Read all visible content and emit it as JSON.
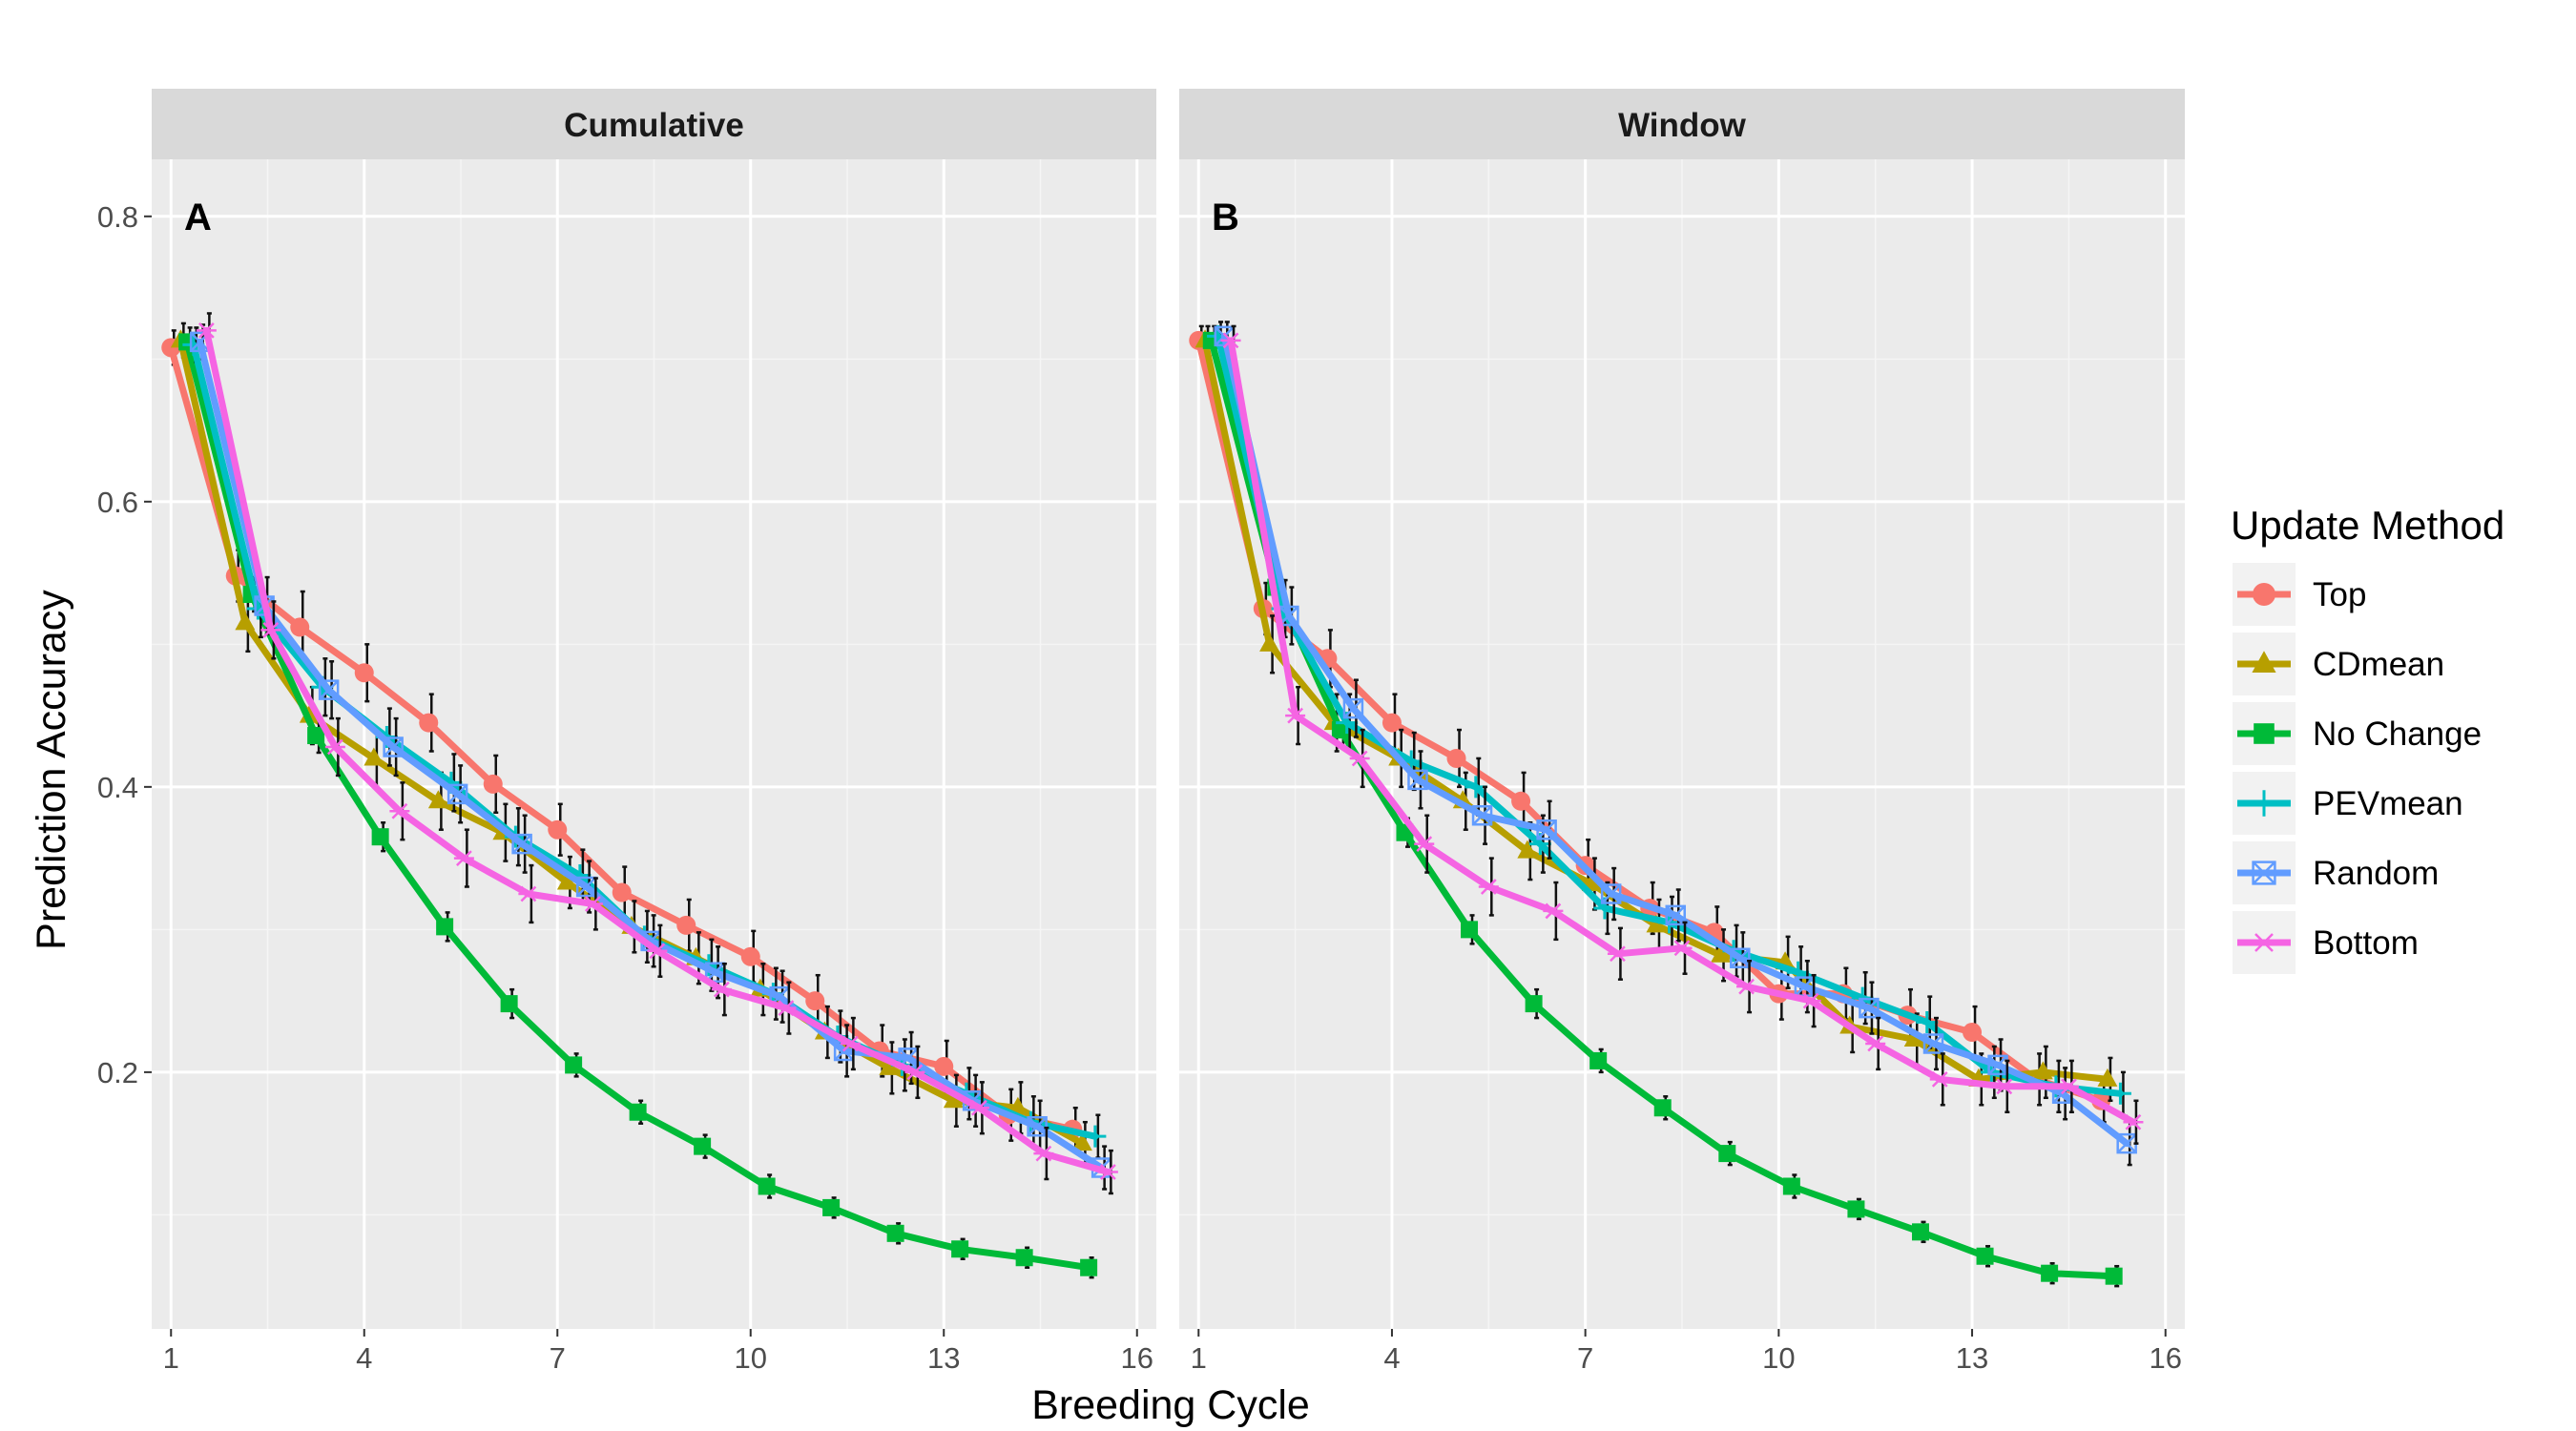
{
  "chart_data": {
    "type": "line",
    "xlabel": "Breeding Cycle",
    "ylabel": "Prediction Accuracy",
    "xlim": [
      0.7,
      16.3
    ],
    "ylim": [
      0.02,
      0.84
    ],
    "xticks": [
      1,
      4,
      7,
      10,
      13,
      16
    ],
    "yticks": [
      0.2,
      0.4,
      0.6,
      0.8
    ],
    "grid": true,
    "legend": {
      "title": "Update Method",
      "position": "right"
    },
    "series_styles": [
      {
        "name": "Top",
        "color": "#F8766D",
        "marker": "circle"
      },
      {
        "name": "CDmean",
        "color": "#B79F00",
        "marker": "triangle"
      },
      {
        "name": "No Change",
        "color": "#00BA38",
        "marker": "square"
      },
      {
        "name": "PEVmean",
        "color": "#00BFC4",
        "marker": "plus"
      },
      {
        "name": "Random",
        "color": "#619CFF",
        "marker": "square-cross"
      },
      {
        "name": "Bottom",
        "color": "#F564E3",
        "marker": "asterisk"
      }
    ],
    "panels": [
      {
        "strip": "Cumulative",
        "tag": "A",
        "series": [
          {
            "name": "Top",
            "x": [
              1,
              2,
              3,
              4,
              5,
              6,
              7,
              8,
              9,
              10,
              11,
              12,
              13,
              14,
              15
            ],
            "y": [
              0.708,
              0.548,
              0.512,
              0.48,
              0.445,
              0.402,
              0.37,
              0.326,
              0.303,
              0.281,
              0.25,
              0.215,
              0.204,
              0.17,
              0.16
            ],
            "err": [
              0.012,
              0.018,
              0.025,
              0.02,
              0.02,
              0.02,
              0.018,
              0.018,
              0.018,
              0.018,
              0.018,
              0.018,
              0.018,
              0.018,
              0.015
            ]
          },
          {
            "name": "CDmean",
            "x": [
              1.15,
              2.15,
              3.15,
              4.15,
              5.15,
              6.15,
              7.15,
              8.15,
              9.15,
              10.15,
              11.15,
              12.15,
              13.15,
              14.15,
              15.15
            ],
            "y": [
              0.713,
              0.515,
              0.45,
              0.42,
              0.39,
              0.368,
              0.333,
              0.302,
              0.28,
              0.258,
              0.228,
              0.203,
              0.18,
              0.175,
              0.15
            ],
            "err": [
              0.012,
              0.02,
              0.02,
              0.02,
              0.02,
              0.02,
              0.018,
              0.018,
              0.018,
              0.018,
              0.018,
              0.018,
              0.018,
              0.018,
              0.015
            ]
          },
          {
            "name": "No Change",
            "x": [
              1.25,
              2.25,
              3.25,
              4.25,
              5.25,
              6.25,
              7.25,
              8.25,
              9.25,
              10.25,
              11.25,
              12.25,
              13.25,
              14.25,
              15.25
            ],
            "y": [
              0.712,
              0.535,
              0.436,
              0.365,
              0.302,
              0.248,
              0.205,
              0.172,
              0.148,
              0.12,
              0.105,
              0.087,
              0.076,
              0.07,
              0.063
            ],
            "err": [
              0.01,
              0.012,
              0.012,
              0.01,
              0.01,
              0.01,
              0.008,
              0.008,
              0.008,
              0.008,
              0.007,
              0.007,
              0.007,
              0.007,
              0.007
            ]
          },
          {
            "name": "PEVmean",
            "x": [
              1.35,
              2.35,
              3.35,
              4.35,
              5.35,
              6.35,
              7.35,
              8.35,
              9.35,
              10.35,
              11.35,
              12.35,
              13.35,
              14.35,
              15.35
            ],
            "y": [
              0.71,
              0.525,
              0.47,
              0.435,
              0.403,
              0.365,
              0.338,
              0.295,
              0.275,
              0.255,
              0.225,
              0.205,
              0.185,
              0.165,
              0.155
            ],
            "err": [
              0.012,
              0.02,
              0.02,
              0.02,
              0.02,
              0.02,
              0.018,
              0.018,
              0.018,
              0.018,
              0.018,
              0.018,
              0.018,
              0.018,
              0.015
            ]
          },
          {
            "name": "Random",
            "x": [
              1.45,
              2.45,
              3.45,
              4.45,
              5.45,
              6.45,
              7.45,
              8.45,
              9.45,
              10.45,
              11.45,
              12.45,
              13.45,
              14.45,
              15.45
            ],
            "y": [
              0.712,
              0.527,
              0.468,
              0.428,
              0.395,
              0.36,
              0.33,
              0.292,
              0.27,
              0.253,
              0.215,
              0.21,
              0.18,
              0.162,
              0.133
            ],
            "err": [
              0.012,
              0.02,
              0.02,
              0.02,
              0.02,
              0.02,
              0.018,
              0.018,
              0.018,
              0.018,
              0.018,
              0.018,
              0.018,
              0.018,
              0.015
            ]
          },
          {
            "name": "Bottom",
            "x": [
              1.55,
              2.55,
              3.55,
              4.55,
              5.55,
              6.55,
              7.55,
              8.55,
              9.55,
              10.55,
              11.55,
              12.55,
              13.55,
              14.55,
              15.55
            ],
            "y": [
              0.72,
              0.51,
              0.428,
              0.383,
              0.35,
              0.325,
              0.318,
              0.285,
              0.258,
              0.245,
              0.22,
              0.2,
              0.175,
              0.143,
              0.13
            ],
            "err": [
              0.012,
              0.02,
              0.02,
              0.02,
              0.02,
              0.02,
              0.018,
              0.018,
              0.018,
              0.018,
              0.018,
              0.018,
              0.018,
              0.018,
              0.015
            ]
          }
        ]
      },
      {
        "strip": "Window",
        "tag": "B",
        "series": [
          {
            "name": "Top",
            "x": [
              1,
              2,
              3,
              4,
              5,
              6,
              7,
              8,
              9,
              10,
              11,
              12,
              13,
              14,
              15
            ],
            "y": [
              0.713,
              0.525,
              0.49,
              0.445,
              0.42,
              0.39,
              0.345,
              0.315,
              0.298,
              0.255,
              0.255,
              0.24,
              0.228,
              0.195,
              0.18
            ],
            "err": [
              0.01,
              0.018,
              0.02,
              0.02,
              0.02,
              0.02,
              0.018,
              0.018,
              0.018,
              0.018,
              0.018,
              0.018,
              0.018,
              0.018,
              0.015
            ]
          },
          {
            "name": "CDmean",
            "x": [
              1.1,
              2.1,
              3.1,
              4.1,
              5.1,
              6.1,
              7.1,
              8.1,
              9.1,
              10.1,
              11.1,
              12.1,
              13.1,
              14.1,
              15.1
            ],
            "y": [
              0.713,
              0.5,
              0.445,
              0.42,
              0.39,
              0.355,
              0.332,
              0.303,
              0.282,
              0.277,
              0.232,
              0.223,
              0.195,
              0.2,
              0.195
            ],
            "err": [
              0.01,
              0.02,
              0.02,
              0.02,
              0.02,
              0.02,
              0.018,
              0.018,
              0.018,
              0.018,
              0.018,
              0.018,
              0.018,
              0.018,
              0.015
            ]
          },
          {
            "name": "No Change",
            "x": [
              1.2,
              2.2,
              3.2,
              4.2,
              5.2,
              6.2,
              7.2,
              8.2,
              9.2,
              10.2,
              11.2,
              12.2,
              13.2,
              14.2,
              15.2
            ],
            "y": [
              0.713,
              0.54,
              0.44,
              0.368,
              0.3,
              0.248,
              0.208,
              0.175,
              0.143,
              0.12,
              0.104,
              0.088,
              0.071,
              0.059,
              0.057
            ],
            "err": [
              0.01,
              0.012,
              0.012,
              0.01,
              0.01,
              0.01,
              0.008,
              0.008,
              0.008,
              0.008,
              0.007,
              0.007,
              0.007,
              0.007,
              0.007
            ]
          },
          {
            "name": "PEVmean",
            "x": [
              1.3,
              2.3,
              3.3,
              4.3,
              5.3,
              6.3,
              7.3,
              8.3,
              9.3,
              10.3,
              11.3,
              12.3,
              13.3,
              14.3,
              15.3
            ],
            "y": [
              0.716,
              0.525,
              0.445,
              0.418,
              0.4,
              0.36,
              0.315,
              0.305,
              0.285,
              0.27,
              0.252,
              0.235,
              0.2,
              0.19,
              0.185
            ],
            "err": [
              0.01,
              0.02,
              0.02,
              0.02,
              0.02,
              0.02,
              0.018,
              0.018,
              0.018,
              0.018,
              0.018,
              0.018,
              0.018,
              0.018,
              0.015
            ]
          },
          {
            "name": "Random",
            "x": [
              1.4,
              2.4,
              3.4,
              4.4,
              5.4,
              6.4,
              7.4,
              8.4,
              9.4,
              10.4,
              11.4,
              12.4,
              13.4,
              14.4,
              15.4
            ],
            "y": [
              0.716,
              0.52,
              0.455,
              0.405,
              0.38,
              0.37,
              0.325,
              0.31,
              0.28,
              0.26,
              0.245,
              0.22,
              0.205,
              0.185,
              0.15
            ],
            "err": [
              0.01,
              0.02,
              0.02,
              0.02,
              0.02,
              0.02,
              0.018,
              0.018,
              0.018,
              0.018,
              0.018,
              0.018,
              0.018,
              0.018,
              0.015
            ]
          },
          {
            "name": "Bottom",
            "x": [
              1.5,
              2.5,
              3.5,
              4.5,
              5.5,
              6.5,
              7.5,
              8.5,
              9.5,
              10.5,
              11.5,
              12.5,
              13.5,
              14.5,
              15.5
            ],
            "y": [
              0.713,
              0.45,
              0.42,
              0.36,
              0.33,
              0.313,
              0.283,
              0.287,
              0.26,
              0.25,
              0.22,
              0.195,
              0.19,
              0.19,
              0.165
            ],
            "err": [
              0.01,
              0.02,
              0.02,
              0.02,
              0.02,
              0.02,
              0.018,
              0.018,
              0.018,
              0.018,
              0.018,
              0.018,
              0.018,
              0.018,
              0.015
            ]
          }
        ]
      }
    ]
  }
}
